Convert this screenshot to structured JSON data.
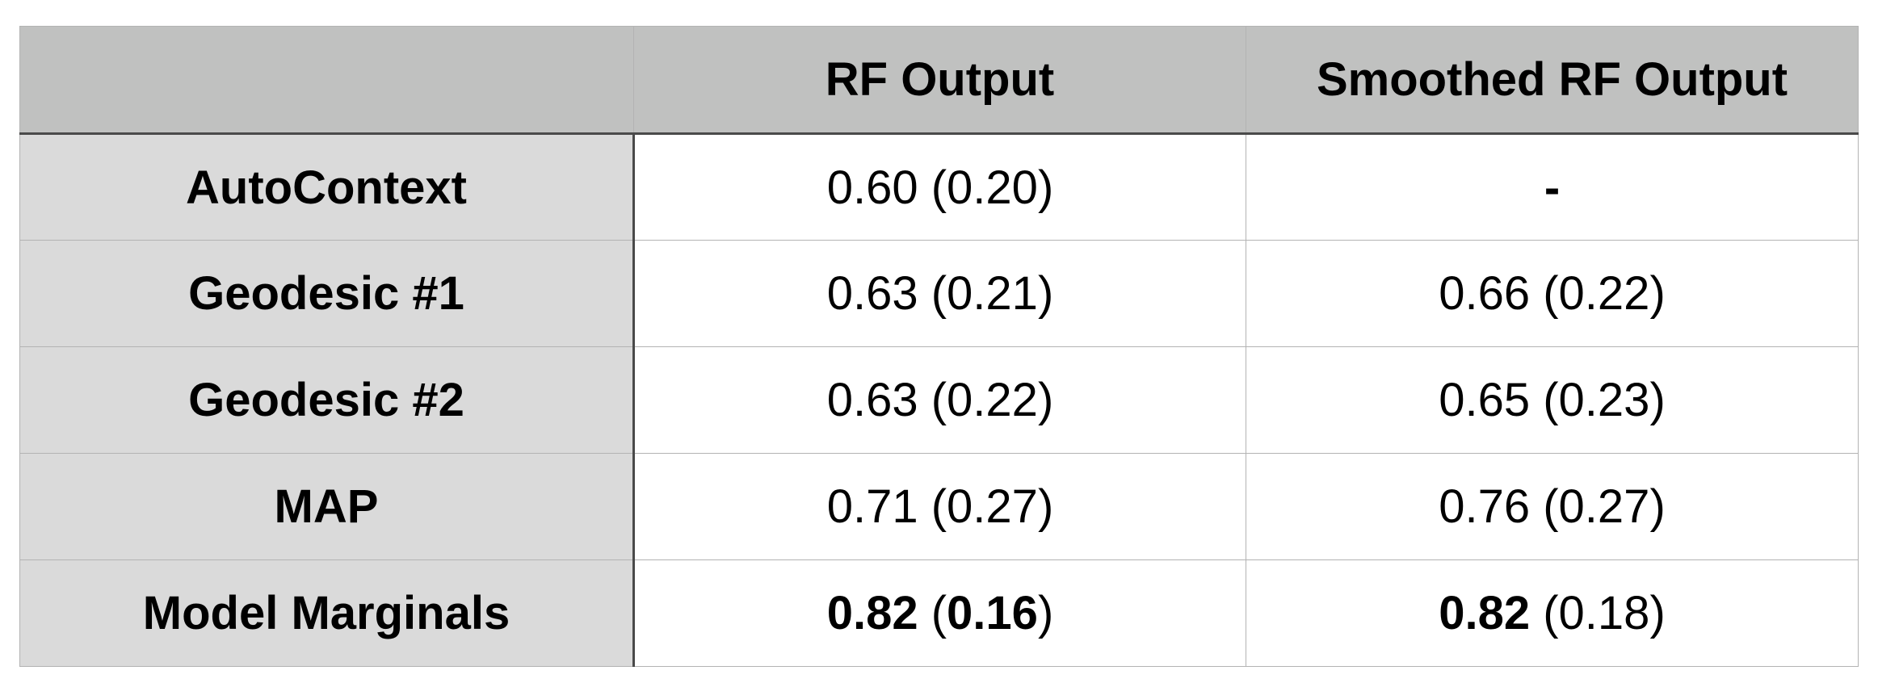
{
  "table": {
    "columns": [
      "",
      "RF Output",
      "Smoothed RF Output"
    ],
    "rows": [
      {
        "label": "AutoContext",
        "rf": {
          "mean": "0.60",
          "sd": "0.20"
        },
        "smoothed": {
          "text": "-"
        }
      },
      {
        "label": "Geodesic #1",
        "rf": {
          "mean": "0.63",
          "sd": "0.21"
        },
        "smoothed": {
          "mean": "0.66",
          "sd": "0.22"
        }
      },
      {
        "label": "Geodesic #2",
        "rf": {
          "mean": "0.63",
          "sd": "0.22"
        },
        "smoothed": {
          "mean": "0.65",
          "sd": "0.23"
        }
      },
      {
        "label": "MAP",
        "rf": {
          "mean": "0.71",
          "sd": "0.27"
        },
        "smoothed": {
          "mean": "0.76",
          "sd": "0.27"
        }
      },
      {
        "label": "Model Marginals",
        "rf": {
          "mean": "0.82",
          "sd": "0.16"
        },
        "smoothed": {
          "mean": "0.82",
          "sd": "0.18"
        }
      }
    ],
    "colors": {
      "header_bg": "#c0c1c0",
      "row_header_bg": "#dadada",
      "cell_bg": "#ffffff",
      "heavy_rule": "#4a4a4a",
      "light_rule": "#b3b3b3"
    }
  }
}
